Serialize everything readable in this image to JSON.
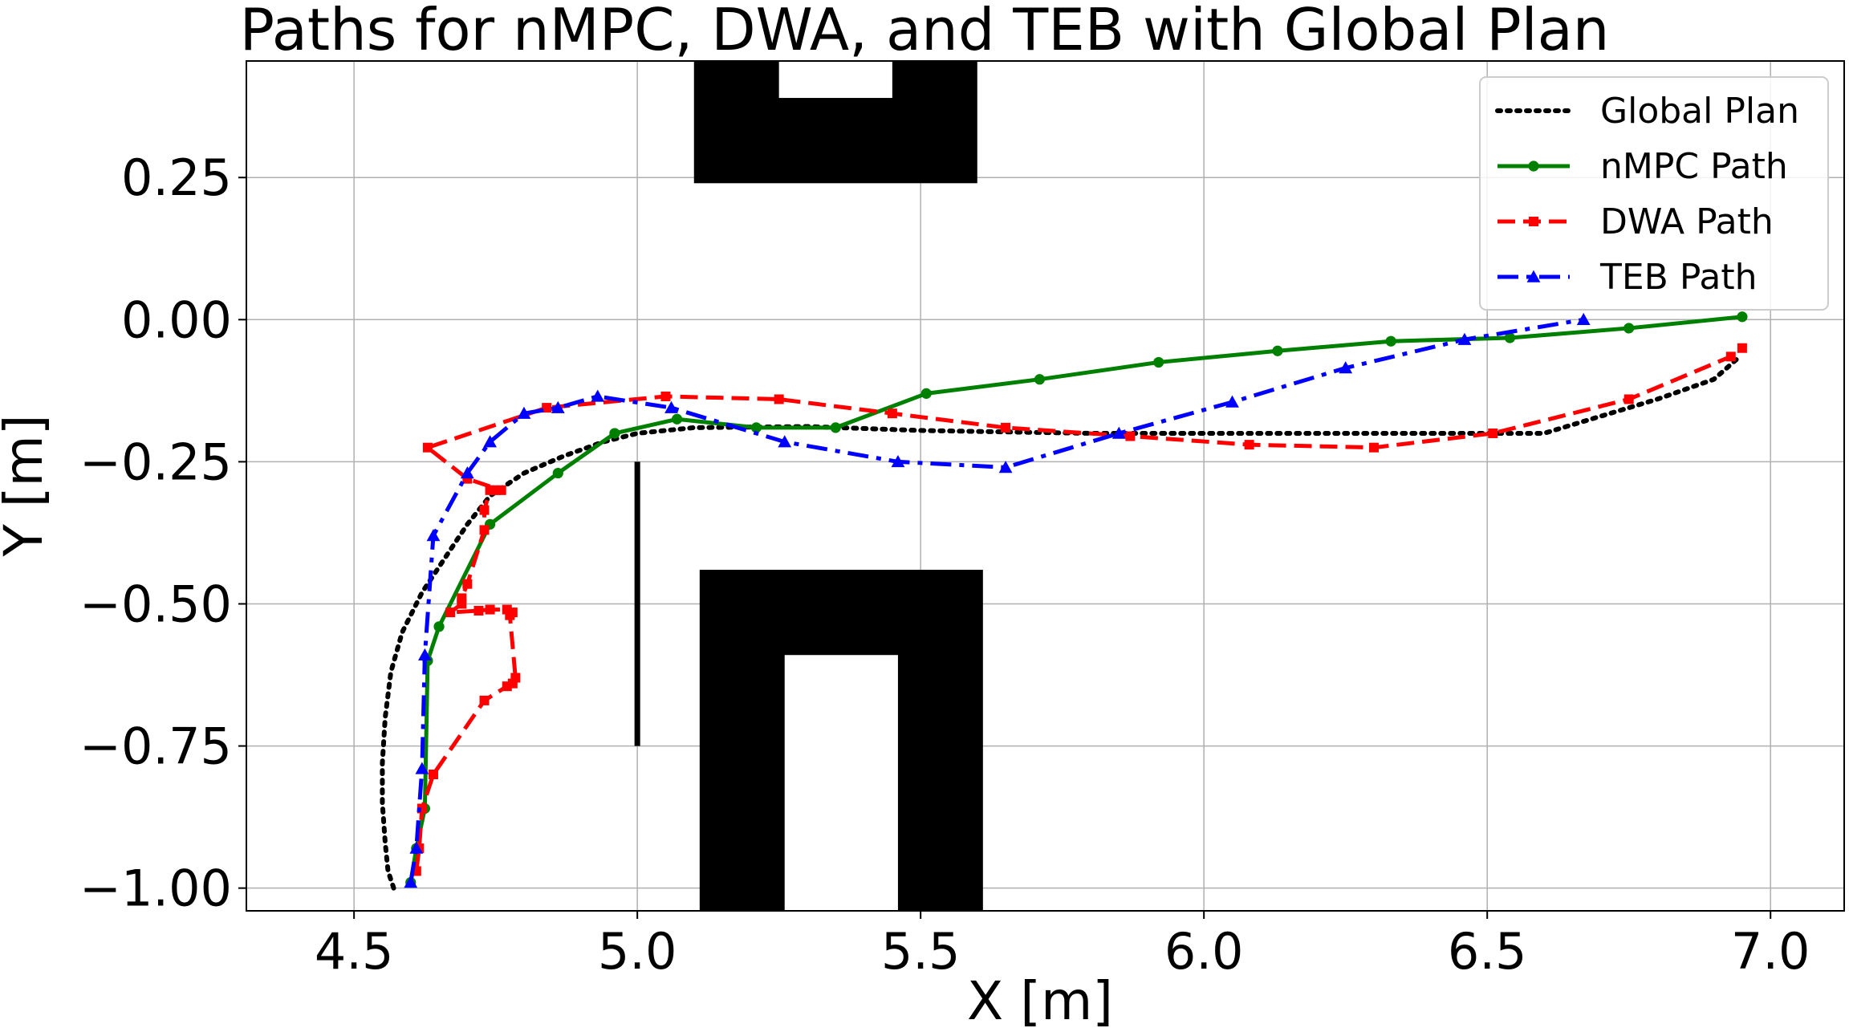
{
  "chart_data": {
    "type": "line",
    "title": "Paths for nMPC, DWA, and TEB with Global Plan",
    "xlabel": "X [m]",
    "ylabel": "Y [m]",
    "xlim": [
      4.31,
      7.13
    ],
    "ylim": [
      -1.04,
      0.455
    ],
    "xticks": [
      4.5,
      5.0,
      5.5,
      6.0,
      6.5,
      7.0
    ],
    "xtick_labels": [
      "4.5",
      "5.0",
      "5.5",
      "6.0",
      "6.5",
      "7.0"
    ],
    "yticks": [
      0.25,
      0.0,
      -0.25,
      -0.5,
      -0.75,
      -1.0
    ],
    "ytick_labels": [
      "0.25",
      "0.00",
      "−0.25",
      "−0.50",
      "−0.75",
      "−1.00"
    ],
    "grid": true,
    "legend_position": "top-right",
    "obstacles": [
      {
        "shape": "rect",
        "x": [
          5.1,
          5.6
        ],
        "y": [
          0.24,
          0.455
        ]
      },
      {
        "shape": "rect",
        "x": [
          5.25,
          5.45
        ],
        "y": [
          0.39,
          0.455
        ],
        "fill": "#ffffff"
      },
      {
        "shape": "rect",
        "x": [
          5.11,
          5.61
        ],
        "y": [
          -1.04,
          -0.44
        ]
      },
      {
        "shape": "rect",
        "x": [
          5.26,
          5.46
        ],
        "y": [
          -1.04,
          -0.59
        ],
        "fill": "#ffffff"
      },
      {
        "shape": "rect",
        "x": [
          4.995,
          5.005
        ],
        "y": [
          -0.75,
          -0.25
        ]
      }
    ],
    "series": [
      {
        "name": "Global Plan",
        "color": "#000000",
        "style": "dotted",
        "marker": "none",
        "points": [
          [
            4.57,
            -1.0
          ],
          [
            4.56,
            -0.97
          ],
          [
            4.555,
            -0.92
          ],
          [
            4.55,
            -0.85
          ],
          [
            4.55,
            -0.78
          ],
          [
            4.555,
            -0.7
          ],
          [
            4.565,
            -0.62
          ],
          [
            4.585,
            -0.55
          ],
          [
            4.62,
            -0.48
          ],
          [
            4.66,
            -0.42
          ],
          [
            4.7,
            -0.36
          ],
          [
            4.74,
            -0.31
          ],
          [
            4.8,
            -0.27
          ],
          [
            4.87,
            -0.24
          ],
          [
            4.94,
            -0.215
          ],
          [
            5.0,
            -0.2
          ],
          [
            5.1,
            -0.19
          ],
          [
            5.3,
            -0.188
          ],
          [
            5.5,
            -0.195
          ],
          [
            5.8,
            -0.2
          ],
          [
            6.1,
            -0.2
          ],
          [
            6.4,
            -0.2
          ],
          [
            6.6,
            -0.2
          ],
          [
            6.7,
            -0.17
          ],
          [
            6.8,
            -0.14
          ],
          [
            6.9,
            -0.105
          ],
          [
            6.94,
            -0.07
          ]
        ]
      },
      {
        "name": "nMPC Path",
        "color": "#008000",
        "style": "solid",
        "marker": "circle",
        "points": [
          [
            4.6,
            -0.99
          ],
          [
            4.61,
            -0.93
          ],
          [
            4.625,
            -0.86
          ],
          [
            4.63,
            -0.6
          ],
          [
            4.65,
            -0.54
          ],
          [
            4.74,
            -0.36
          ],
          [
            4.86,
            -0.27
          ],
          [
            4.96,
            -0.2
          ],
          [
            5.07,
            -0.175
          ],
          [
            5.21,
            -0.19
          ],
          [
            5.35,
            -0.19
          ],
          [
            5.51,
            -0.13
          ],
          [
            5.71,
            -0.105
          ],
          [
            5.92,
            -0.075
          ],
          [
            6.13,
            -0.055
          ],
          [
            6.33,
            -0.038
          ],
          [
            6.54,
            -0.032
          ],
          [
            6.75,
            -0.015
          ],
          [
            6.95,
            0.005
          ]
        ]
      },
      {
        "name": "DWA Path",
        "color": "#ff0000",
        "style": "dashed",
        "marker": "square",
        "points": [
          [
            4.61,
            -0.97
          ],
          [
            4.615,
            -0.93
          ],
          [
            4.62,
            -0.86
          ],
          [
            4.64,
            -0.8
          ],
          [
            4.73,
            -0.67
          ],
          [
            4.77,
            -0.645
          ],
          [
            4.78,
            -0.64
          ],
          [
            4.785,
            -0.63
          ],
          [
            4.775,
            -0.52
          ],
          [
            4.78,
            -0.515
          ],
          [
            4.77,
            -0.51
          ],
          [
            4.74,
            -0.51
          ],
          [
            4.72,
            -0.512
          ],
          [
            4.67,
            -0.515
          ],
          [
            4.69,
            -0.5
          ],
          [
            4.69,
            -0.49
          ],
          [
            4.7,
            -0.465
          ],
          [
            4.73,
            -0.37
          ],
          [
            4.73,
            -0.335
          ],
          [
            4.74,
            -0.3
          ],
          [
            4.75,
            -0.3
          ],
          [
            4.76,
            -0.3
          ],
          [
            4.7,
            -0.28
          ],
          [
            4.63,
            -0.225
          ],
          [
            4.84,
            -0.155
          ],
          [
            5.05,
            -0.135
          ],
          [
            5.25,
            -0.14
          ],
          [
            5.45,
            -0.165
          ],
          [
            5.65,
            -0.19
          ],
          [
            5.87,
            -0.205
          ],
          [
            6.08,
            -0.22
          ],
          [
            6.3,
            -0.225
          ],
          [
            6.51,
            -0.2
          ],
          [
            6.75,
            -0.14
          ],
          [
            6.93,
            -0.065
          ],
          [
            6.95,
            -0.05
          ]
        ]
      },
      {
        "name": "TEB Path",
        "color": "#0000ff",
        "style": "dashdot",
        "marker": "triangle",
        "points": [
          [
            4.6,
            -0.99
          ],
          [
            4.61,
            -0.93
          ],
          [
            4.62,
            -0.79
          ],
          [
            4.625,
            -0.59
          ],
          [
            4.64,
            -0.38
          ],
          [
            4.7,
            -0.27
          ],
          [
            4.74,
            -0.215
          ],
          [
            4.8,
            -0.165
          ],
          [
            4.86,
            -0.155
          ],
          [
            4.93,
            -0.135
          ],
          [
            5.06,
            -0.155
          ],
          [
            5.26,
            -0.215
          ],
          [
            5.46,
            -0.25
          ],
          [
            5.65,
            -0.26
          ],
          [
            5.85,
            -0.2
          ],
          [
            6.05,
            -0.145
          ],
          [
            6.25,
            -0.085
          ],
          [
            6.46,
            -0.035
          ],
          [
            6.67,
            0.0
          ]
        ]
      }
    ]
  }
}
